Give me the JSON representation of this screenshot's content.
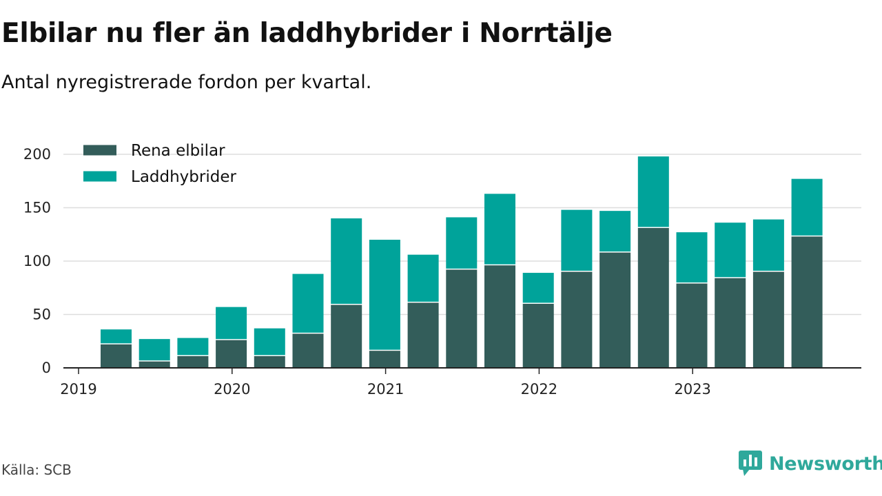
{
  "title": "Elbilar nu fler än laddhybrider i Norrtälje",
  "subtitle": "Antal nyregistrerade fordon per kvartal.",
  "source": "Källa: SCB",
  "brand": "Newsworthy",
  "colors": {
    "elbilar": "#335d5a",
    "laddhybrider": "#00a39a",
    "grid": "#dddddd",
    "axis": "#222222",
    "brand": "#2fa89b"
  },
  "chart_data": {
    "type": "bar",
    "stacked": true,
    "title": "Elbilar nu fler än laddhybrider i Norrtälje",
    "subtitle": "Antal nyregistrerade fordon per kvartal.",
    "xlabel": "",
    "ylabel": "",
    "ylim": [
      0,
      200
    ],
    "yticks": [
      0,
      50,
      100,
      150,
      200
    ],
    "grid": true,
    "legend": "top-left",
    "xtick_labels": [
      "2019",
      "2020",
      "2021",
      "2022",
      "2023"
    ],
    "categories": [
      "2019 Q2",
      "2019 Q3",
      "2019 Q4",
      "2020 Q1",
      "2020 Q2",
      "2020 Q3",
      "2020 Q4",
      "2021 Q1",
      "2021 Q2",
      "2021 Q3",
      "2021 Q4",
      "2022 Q1",
      "2022 Q2",
      "2022 Q3",
      "2022 Q4",
      "2023 Q1",
      "2023 Q2",
      "2023 Q3",
      "2023 Q4"
    ],
    "series": [
      {
        "name": "Rena elbilar",
        "values": [
          22,
          6,
          11,
          26,
          11,
          32,
          59,
          16,
          61,
          92,
          96,
          60,
          90,
          108,
          131,
          79,
          84,
          90,
          123
        ]
      },
      {
        "name": "Laddhybrider",
        "values": [
          14,
          21,
          17,
          31,
          26,
          56,
          81,
          104,
          45,
          49,
          67,
          29,
          58,
          39,
          67,
          48,
          52,
          49,
          54
        ]
      }
    ]
  }
}
